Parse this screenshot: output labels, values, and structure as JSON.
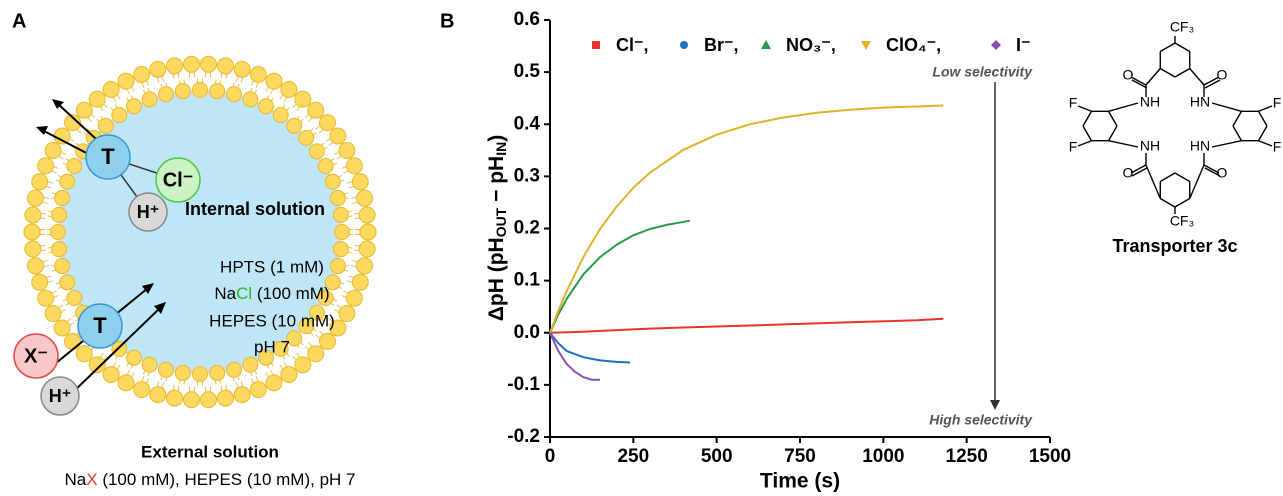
{
  "diagram": {
    "label": "A",
    "upper_complex": {
      "carrier": "T",
      "anion": "Cl⁻",
      "proton": "H⁺"
    },
    "internal_title": "Internal solution",
    "internal_lines": [
      "HPTS (1 mM)",
      [
        "Na",
        "Cl",
        " (100 mM)"
      ],
      "HEPES (10 mM)",
      "pH 7"
    ],
    "lower_complex": {
      "carrier": "T",
      "anion": "X⁻",
      "proton": "H⁺"
    },
    "external_title": "External solution",
    "external_line": [
      "Na",
      "X",
      " (100 mM), HEPES (10 mM), pH 7"
    ]
  },
  "chart_data": {
    "type": "line",
    "label": "B",
    "xlabel": "Time (s)",
    "ylabel": [
      "ΔpH (pH",
      "OUT",
      " − pH",
      "IN",
      ")"
    ],
    "xlim": [
      0,
      1500
    ],
    "xticks": [
      0,
      250,
      500,
      750,
      1000,
      1250,
      1500
    ],
    "ylim": [
      -0.2,
      0.6
    ],
    "yticks": [
      -0.2,
      -0.1,
      {
        "value": 0,
        "label": "0.0"
      },
      0.1,
      0.2,
      0.3,
      0.4,
      0.5,
      0.6
    ],
    "annotations": [
      "Low selectivity",
      "High selectivity"
    ],
    "series": [
      {
        "name": "Cl⁻,",
        "color": "#e8332a",
        "marker": "square",
        "x": [
          0,
          100,
          200,
          300,
          400,
          500,
          600,
          700,
          800,
          900,
          1000,
          1100,
          1180
        ],
        "values": [
          0,
          0.002,
          0.005,
          0.008,
          0.01,
          0.012,
          0.014,
          0.016,
          0.018,
          0.02,
          0.022,
          0.024,
          0.027
        ]
      },
      {
        "name": "Br⁻,",
        "color": "#1f6fc5",
        "marker": "circle",
        "x": [
          0,
          25,
          50,
          100,
          150,
          200,
          240
        ],
        "values": [
          0,
          -0.02,
          -0.035,
          -0.047,
          -0.053,
          -0.056,
          -0.057
        ]
      },
      {
        "name": "NO₃⁻,",
        "color": "#2a9a4c",
        "marker": "triangle",
        "x": [
          0,
          25,
          50,
          100,
          150,
          200,
          250,
          300,
          350,
          420
        ],
        "values": [
          0,
          0.035,
          0.065,
          0.112,
          0.145,
          0.169,
          0.187,
          0.199,
          0.207,
          0.215
        ]
      },
      {
        "name": "ClO₄⁻,",
        "color": "#e0b22a",
        "marker": "triangle-down",
        "x": [
          0,
          25,
          50,
          100,
          150,
          200,
          250,
          300,
          400,
          500,
          600,
          700,
          800,
          900,
          1000,
          1100,
          1180
        ],
        "values": [
          0,
          0.042,
          0.08,
          0.145,
          0.199,
          0.242,
          0.278,
          0.307,
          0.351,
          0.38,
          0.4,
          0.413,
          0.422,
          0.428,
          0.432,
          0.434,
          0.436
        ]
      },
      {
        "name": "I⁻",
        "color": "#8e4fb5",
        "marker": "diamond",
        "x": [
          0,
          25,
          50,
          75,
          100,
          125,
          150
        ],
        "values": [
          0,
          -0.035,
          -0.06,
          -0.075,
          -0.085,
          -0.09,
          -0.09
        ]
      }
    ]
  },
  "molecule": {
    "groups": [
      "CF₃",
      "CF₃",
      "O",
      "O",
      "O",
      "O",
      "NH",
      "HN",
      "NH",
      "HN",
      "F",
      "F",
      "F",
      "F"
    ],
    "caption": "Transporter 3c"
  }
}
